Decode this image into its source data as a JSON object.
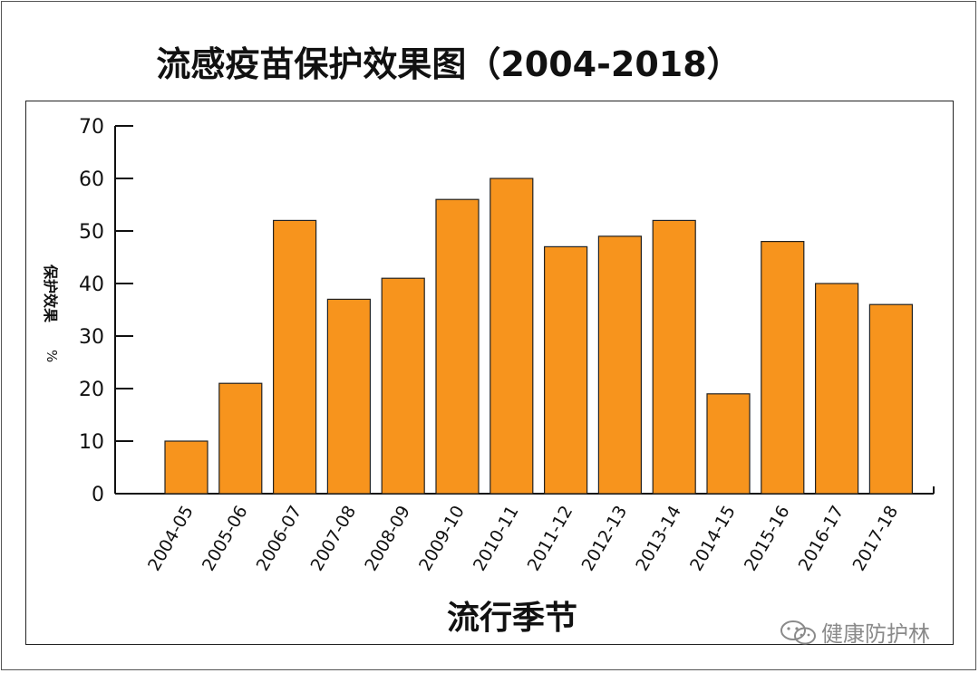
{
  "chart_data": {
    "type": "bar",
    "title": "流感疫苗保护效果图（2004-2018）",
    "xlabel": "流行季节",
    "ylabel_main": "保护效果",
    "ylabel_unit": "%",
    "categories": [
      "2004-05",
      "2005-06",
      "2006-07",
      "2007-08",
      "2008-09",
      "2009-10",
      "2010-11",
      "2011-12",
      "2012-13",
      "2013-14",
      "2014-15",
      "2015-16",
      "2016-17",
      "2017-18"
    ],
    "values": [
      10,
      21,
      52,
      37,
      41,
      56,
      60,
      47,
      49,
      52,
      19,
      48,
      40,
      36
    ],
    "ylim": [
      0,
      70
    ],
    "yticks": [
      0,
      10,
      20,
      30,
      40,
      50,
      60,
      70
    ],
    "grid": false,
    "bar_color": "#F7941D",
    "bar_stroke": "#222222"
  },
  "watermark": {
    "text": "健康防护林",
    "icon": "wechat-icon"
  }
}
